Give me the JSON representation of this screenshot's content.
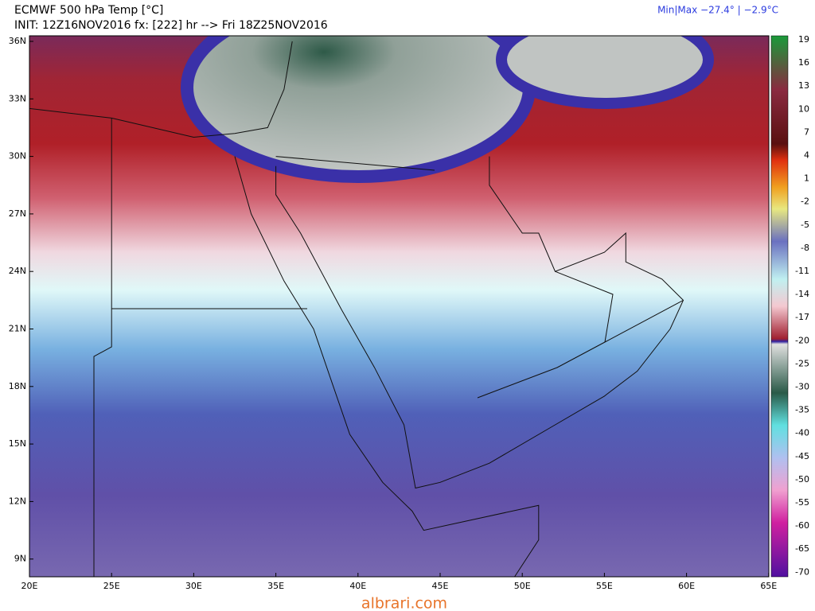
{
  "header": {
    "title": "ECMWF 500 hPa Temp [°C]",
    "init": "INIT: 12Z16NOV2016 fx: [222] hr --> Fri 18Z25NOV2016",
    "minmax": "Min|Max −27.4° | −2.9°C"
  },
  "map": {
    "lat_labels": [
      "36N",
      "33N",
      "30N",
      "27N",
      "24N",
      "21N",
      "18N",
      "15N",
      "12N",
      "9N"
    ],
    "lon_labels": [
      "20E",
      "25E",
      "30E",
      "35E",
      "40E",
      "45E",
      "50E",
      "55E",
      "60E",
      "65E"
    ]
  },
  "colorbar": {
    "labels": [
      "19",
      "16",
      "13",
      "10",
      "7",
      "4",
      "1",
      "-2",
      "-5",
      "-8",
      "-11",
      "-14",
      "-17",
      "-20",
      "-25",
      "-30",
      "-35",
      "-40",
      "-45",
      "-50",
      "-55",
      "-60",
      "-65",
      "-70"
    ]
  },
  "footer": {
    "watermark": "albrari.com"
  }
}
